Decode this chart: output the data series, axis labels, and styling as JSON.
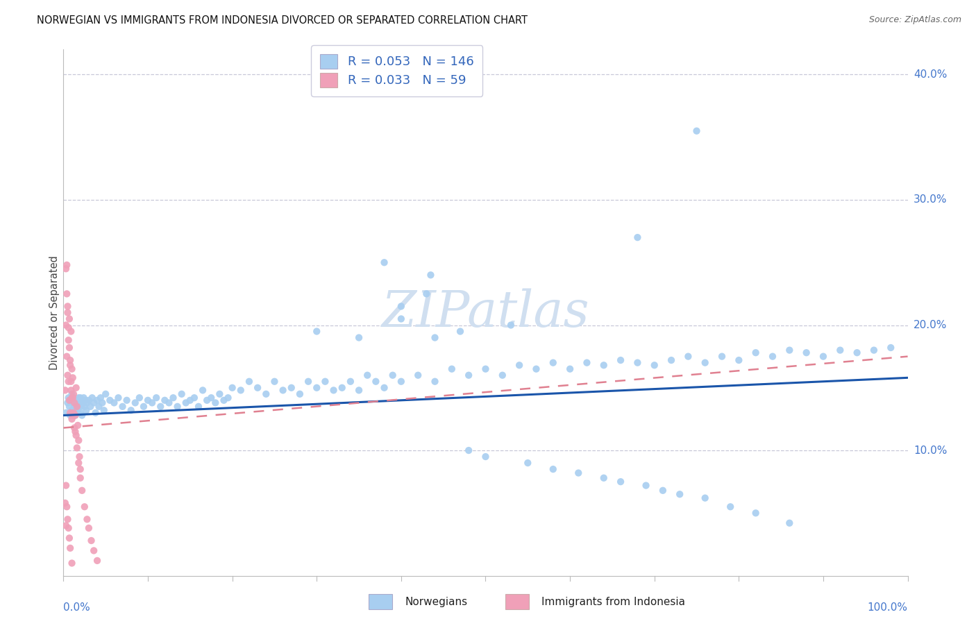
{
  "title": "NORWEGIAN VS IMMIGRANTS FROM INDONESIA DIVORCED OR SEPARATED CORRELATION CHART",
  "source": "Source: ZipAtlas.com",
  "ylabel": "Divorced or Separated",
  "legend_label1": "Norwegians",
  "legend_label2": "Immigrants from Indonesia",
  "r1": 0.053,
  "n1": 146,
  "r2": 0.033,
  "n2": 59,
  "color_blue": "#a8cef0",
  "color_pink": "#f0a0b8",
  "color_blue_line": "#1a55aa",
  "color_pink_line": "#e08090",
  "watermark_color": "#d0dff0",
  "grid_color": "#c8c8d8",
  "xlim": [
    0.0,
    1.0
  ],
  "ylim": [
    0.0,
    0.42
  ],
  "yticks": [
    0.1,
    0.2,
    0.3,
    0.4
  ],
  "ytick_labels": [
    "10.0%",
    "20.0%",
    "30.0%",
    "40.0%"
  ],
  "blue_trend_start": 0.128,
  "blue_trend_end": 0.158,
  "pink_trend_start": 0.118,
  "pink_trend_end": 0.175,
  "blue_x": [
    0.003,
    0.005,
    0.006,
    0.007,
    0.008,
    0.009,
    0.01,
    0.01,
    0.011,
    0.012,
    0.012,
    0.013,
    0.014,
    0.015,
    0.015,
    0.016,
    0.017,
    0.018,
    0.018,
    0.019,
    0.02,
    0.02,
    0.021,
    0.022,
    0.023,
    0.024,
    0.025,
    0.026,
    0.027,
    0.028,
    0.03,
    0.032,
    0.034,
    0.036,
    0.038,
    0.04,
    0.042,
    0.044,
    0.046,
    0.048,
    0.05,
    0.055,
    0.06,
    0.065,
    0.07,
    0.075,
    0.08,
    0.085,
    0.09,
    0.095,
    0.1,
    0.105,
    0.11,
    0.115,
    0.12,
    0.125,
    0.13,
    0.135,
    0.14,
    0.145,
    0.15,
    0.155,
    0.16,
    0.165,
    0.17,
    0.175,
    0.18,
    0.185,
    0.19,
    0.195,
    0.2,
    0.21,
    0.22,
    0.23,
    0.24,
    0.25,
    0.26,
    0.27,
    0.28,
    0.29,
    0.3,
    0.31,
    0.32,
    0.33,
    0.34,
    0.35,
    0.36,
    0.37,
    0.38,
    0.39,
    0.4,
    0.42,
    0.44,
    0.46,
    0.48,
    0.5,
    0.52,
    0.54,
    0.56,
    0.58,
    0.6,
    0.62,
    0.64,
    0.66,
    0.68,
    0.7,
    0.72,
    0.74,
    0.76,
    0.78,
    0.8,
    0.82,
    0.84,
    0.86,
    0.88,
    0.9,
    0.92,
    0.94,
    0.96,
    0.98,
    0.38,
    0.4,
    0.43,
    0.435,
    0.68,
    0.75,
    0.44,
    0.47,
    0.53,
    0.4,
    0.35,
    0.3,
    0.48,
    0.5,
    0.55,
    0.58,
    0.61,
    0.64,
    0.66,
    0.69,
    0.71,
    0.73,
    0.76,
    0.79,
    0.82,
    0.86
  ],
  "blue_y": [
    0.13,
    0.138,
    0.142,
    0.135,
    0.128,
    0.14,
    0.132,
    0.145,
    0.138,
    0.13,
    0.142,
    0.135,
    0.128,
    0.14,
    0.132,
    0.138,
    0.13,
    0.142,
    0.135,
    0.138,
    0.13,
    0.142,
    0.135,
    0.128,
    0.138,
    0.142,
    0.135,
    0.14,
    0.132,
    0.138,
    0.14,
    0.135,
    0.142,
    0.138,
    0.13,
    0.14,
    0.135,
    0.142,
    0.138,
    0.132,
    0.145,
    0.14,
    0.138,
    0.142,
    0.135,
    0.14,
    0.132,
    0.138,
    0.142,
    0.135,
    0.14,
    0.138,
    0.142,
    0.135,
    0.14,
    0.138,
    0.142,
    0.135,
    0.145,
    0.138,
    0.14,
    0.142,
    0.135,
    0.148,
    0.14,
    0.142,
    0.138,
    0.145,
    0.14,
    0.142,
    0.15,
    0.148,
    0.155,
    0.15,
    0.145,
    0.155,
    0.148,
    0.15,
    0.145,
    0.155,
    0.15,
    0.155,
    0.148,
    0.15,
    0.155,
    0.148,
    0.16,
    0.155,
    0.15,
    0.16,
    0.155,
    0.16,
    0.155,
    0.165,
    0.16,
    0.165,
    0.16,
    0.168,
    0.165,
    0.17,
    0.165,
    0.17,
    0.168,
    0.172,
    0.17,
    0.168,
    0.172,
    0.175,
    0.17,
    0.175,
    0.172,
    0.178,
    0.175,
    0.18,
    0.178,
    0.175,
    0.18,
    0.178,
    0.18,
    0.182,
    0.25,
    0.215,
    0.225,
    0.24,
    0.27,
    0.355,
    0.19,
    0.195,
    0.2,
    0.205,
    0.19,
    0.195,
    0.1,
    0.095,
    0.09,
    0.085,
    0.082,
    0.078,
    0.075,
    0.072,
    0.068,
    0.065,
    0.062,
    0.055,
    0.05,
    0.042
  ],
  "pink_x": [
    0.002,
    0.003,
    0.004,
    0.004,
    0.005,
    0.005,
    0.006,
    0.006,
    0.007,
    0.007,
    0.008,
    0.008,
    0.009,
    0.009,
    0.01,
    0.01,
    0.011,
    0.011,
    0.012,
    0.012,
    0.013,
    0.013,
    0.014,
    0.015,
    0.015,
    0.016,
    0.017,
    0.018,
    0.019,
    0.02,
    0.003,
    0.004,
    0.005,
    0.006,
    0.007,
    0.008,
    0.009,
    0.01,
    0.012,
    0.014,
    0.016,
    0.018,
    0.02,
    0.022,
    0.025,
    0.028,
    0.03,
    0.033,
    0.036,
    0.04,
    0.002,
    0.003,
    0.003,
    0.004,
    0.005,
    0.006,
    0.007,
    0.008,
    0.01
  ],
  "pink_y": [
    0.148,
    0.2,
    0.175,
    0.248,
    0.215,
    0.16,
    0.188,
    0.155,
    0.205,
    0.14,
    0.172,
    0.13,
    0.195,
    0.148,
    0.165,
    0.125,
    0.142,
    0.158,
    0.13,
    0.145,
    0.118,
    0.138,
    0.128,
    0.15,
    0.112,
    0.135,
    0.12,
    0.108,
    0.095,
    0.085,
    0.245,
    0.225,
    0.21,
    0.198,
    0.182,
    0.168,
    0.155,
    0.142,
    0.128,
    0.115,
    0.102,
    0.09,
    0.078,
    0.068,
    0.055,
    0.045,
    0.038,
    0.028,
    0.02,
    0.012,
    0.058,
    0.072,
    0.04,
    0.055,
    0.045,
    0.038,
    0.03,
    0.022,
    0.01
  ]
}
